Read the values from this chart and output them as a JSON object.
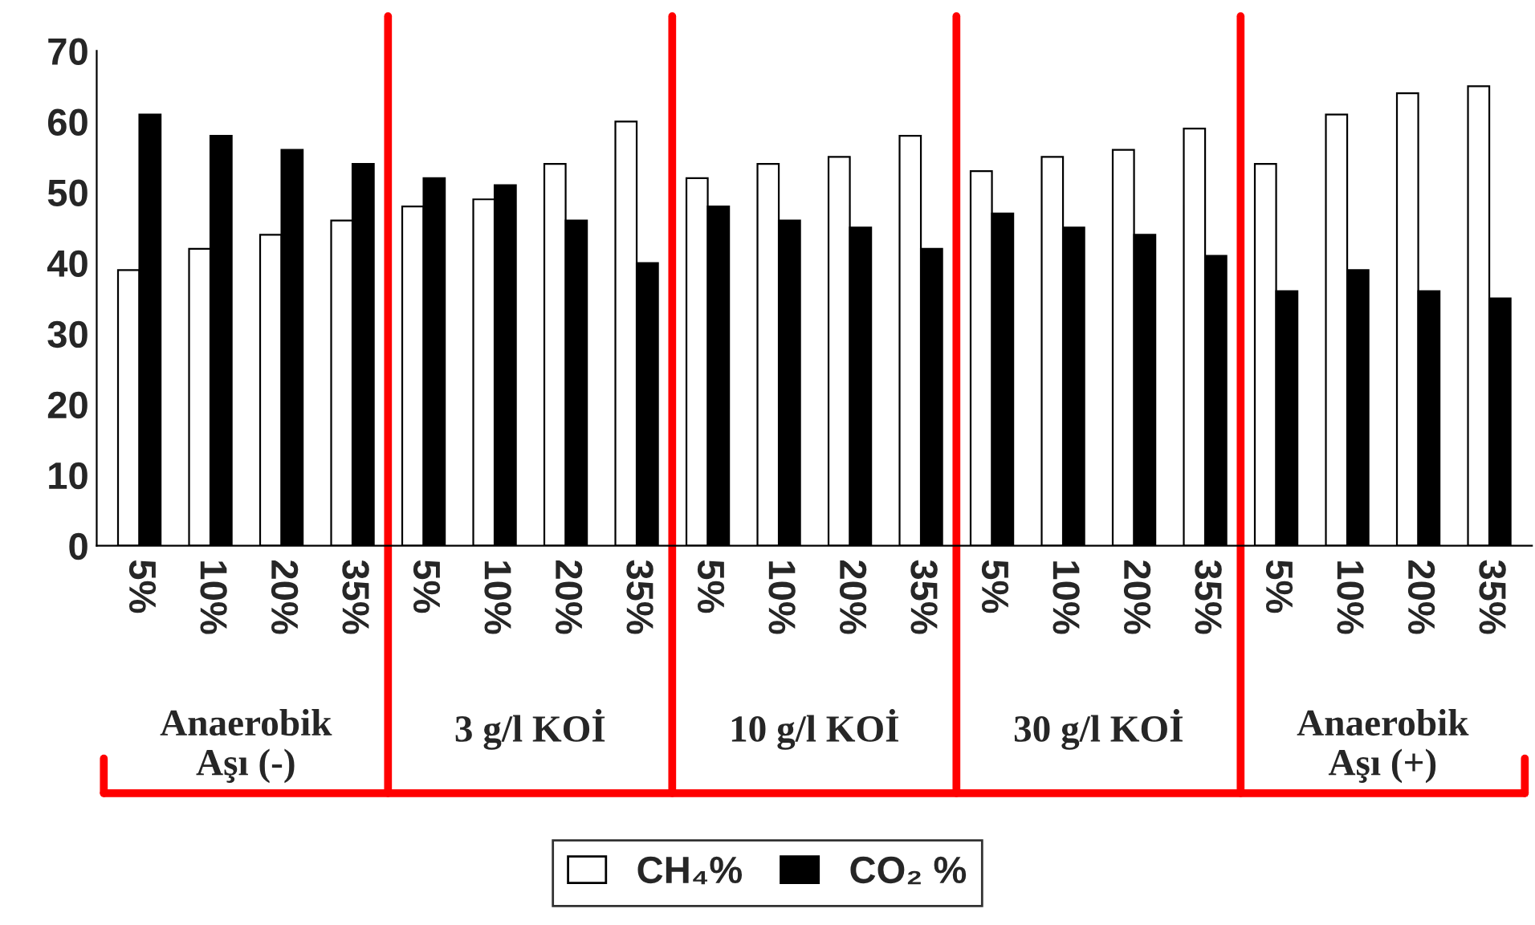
{
  "chart_data": {
    "type": "bar",
    "categories": [
      "5%",
      "10%",
      "20%",
      "35%",
      "5%",
      "10%",
      "20%",
      "35%",
      "5%",
      "10%",
      "20%",
      "35%",
      "5%",
      "10%",
      "20%",
      "35%",
      "5%",
      "10%",
      "20%",
      "35%"
    ],
    "series": [
      {
        "name": "CH₄%",
        "color": "#ffffff",
        "values": [
          39,
          42,
          44,
          46,
          48,
          49,
          54,
          60,
          52,
          54,
          55,
          58,
          53,
          55,
          56,
          59,
          54,
          61,
          64,
          65
        ]
      },
      {
        "name": "CO₂ %",
        "color": "#000000",
        "values": [
          61,
          58,
          56,
          54,
          52,
          51,
          46,
          40,
          48,
          46,
          45,
          42,
          47,
          45,
          44,
          41,
          36,
          39,
          36,
          35
        ]
      }
    ],
    "annotations": [
      "Anaerobik\nAşı (-)",
      "3 g/l KOİ",
      "10 g/l KOİ",
      "30 g/l KOİ",
      "Anaerobik\nAşı (+)"
    ],
    "ylim": [
      0,
      70
    ],
    "yticks": [
      0,
      10,
      20,
      30,
      40,
      50,
      60,
      70
    ],
    "grid": false,
    "legend": "bottom"
  }
}
